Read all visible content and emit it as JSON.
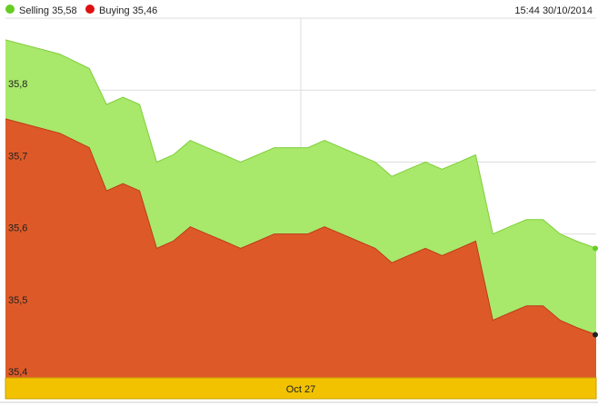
{
  "legend": [
    {
      "label": "Selling 35,58",
      "color": "#66cc22"
    },
    {
      "label": "Buying 35,46",
      "color": "#dd1111"
    }
  ],
  "timestamp": "15:44 30/10/2014",
  "colors": {
    "selling_fill": "#a8e86a",
    "selling_line": "#7fcf3a",
    "buying_fill": "#dd5a28",
    "buying_line": "#c0391a",
    "grid": "#dddddd",
    "xbar": "#f2c200",
    "xbar_border": "#c8a000"
  },
  "chart_data": {
    "type": "area",
    "ylim": [
      35.4,
      35.9
    ],
    "yticks": [
      35.4,
      35.5,
      35.6,
      35.7,
      35.8
    ],
    "ytick_labels": [
      "35,4",
      "35,5",
      "35,6",
      "35,7",
      "35,8"
    ],
    "grid": true,
    "legend_position": "top-left",
    "x_label_positions": [
      0.5
    ],
    "x_labels": [
      "Oct 27"
    ],
    "series": [
      {
        "name": "Selling",
        "values": [
          35.87,
          35.85,
          35.83,
          35.78,
          35.79,
          35.78,
          35.7,
          35.71,
          35.73,
          35.72,
          35.71,
          35.7,
          35.71,
          35.72,
          35.72,
          35.72,
          35.73,
          35.72,
          35.71,
          35.7,
          35.68,
          35.69,
          35.7,
          35.69,
          35.7,
          35.71,
          35.6,
          35.61,
          35.62,
          35.62,
          35.6,
          35.59,
          35.58
        ]
      },
      {
        "name": "Buying",
        "values": [
          35.76,
          35.74,
          35.72,
          35.66,
          35.67,
          35.66,
          35.58,
          35.59,
          35.61,
          35.6,
          35.59,
          35.58,
          35.59,
          35.6,
          35.6,
          35.6,
          35.61,
          35.6,
          35.59,
          35.58,
          35.56,
          35.57,
          35.58,
          35.57,
          35.58,
          35.59,
          35.48,
          35.49,
          35.5,
          35.5,
          35.48,
          35.47,
          35.46
        ]
      }
    ],
    "x_positions": [
      0.0,
      0.092,
      0.142,
      0.171,
      0.199,
      0.227,
      0.256,
      0.284,
      0.313,
      0.341,
      0.37,
      0.398,
      0.427,
      0.455,
      0.483,
      0.512,
      0.54,
      0.569,
      0.597,
      0.626,
      0.654,
      0.682,
      0.711,
      0.739,
      0.768,
      0.796,
      0.825,
      0.853,
      0.882,
      0.91,
      0.939,
      0.967,
      1.0
    ]
  }
}
